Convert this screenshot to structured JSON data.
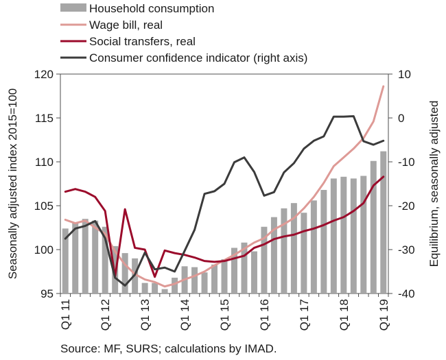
{
  "chart_data": {
    "type": "bar+line",
    "legend": {
      "placement": "top-left",
      "entries": [
        {
          "label": "Household consumption",
          "kind": "bar",
          "color": "#a6a6a6"
        },
        {
          "label": "Wage bill, real",
          "kind": "line",
          "color": "#de9a96"
        },
        {
          "label": "Social transfers, real",
          "kind": "line",
          "color": "#9b0b2b"
        },
        {
          "label": "Consumer confidence indicator (right axis)",
          "kind": "line",
          "color": "#3b3b3b"
        }
      ]
    },
    "ylabel_left": "Seasonally adjusted index 2015=100",
    "ylabel_right": "Equilibrium, seasonally adjusted",
    "y_left": {
      "min": 95,
      "max": 120,
      "ticks": [
        "95",
        "100",
        "105",
        "110",
        "115",
        "120"
      ]
    },
    "y_right": {
      "min": -40,
      "max": 10,
      "ticks": [
        "-40",
        "-30",
        "-20",
        "-10",
        "0",
        "10"
      ]
    },
    "x_ticks": [
      "Q1 11",
      "Q1 12",
      "Q1 13",
      "Q1 14",
      "Q1 15",
      "Q1 16",
      "Q1 17",
      "Q1 18",
      "Q1 19"
    ],
    "grid": false,
    "source": "Source: MF, SURS; calculations by IMAD.",
    "series": [
      {
        "name": "Household consumption",
        "axis": "left",
        "type": "bar",
        "color": "#a6a6a6",
        "values": [
          102.4,
          103.1,
          103.5,
          103.3,
          102.6,
          100.4,
          99.6,
          99.0,
          96.2,
          96.2,
          95.5,
          96.8,
          98.1,
          98.0,
          97.4,
          98.3,
          98.9,
          100.2,
          100.8,
          99.8,
          102.6,
          103.7,
          104.7,
          105.3,
          104.2,
          105.6,
          106.8,
          108.1,
          108.3,
          108.1,
          108.4,
          110.1,
          111.2
        ]
      },
      {
        "name": "Wage bill, real",
        "axis": "left",
        "type": "line",
        "color": "#de9a96",
        "values": [
          103.4,
          103.0,
          103.3,
          102.5,
          101.8,
          99.8,
          98.3,
          97.2,
          96.6,
          96.3,
          95.8,
          96.1,
          96.6,
          97.0,
          97.5,
          98.2,
          98.8,
          99.4,
          100.1,
          100.8,
          101.3,
          102.3,
          102.9,
          103.6,
          104.7,
          106.0,
          107.6,
          109.5,
          110.5,
          111.5,
          112.7,
          114.6,
          118.6
        ]
      },
      {
        "name": "Social transfers, real",
        "axis": "left",
        "type": "line",
        "color": "#9b0b2b",
        "values": [
          106.6,
          106.9,
          106.6,
          106.0,
          104.4,
          96.9,
          104.6,
          100.2,
          100.0,
          96.9,
          99.9,
          99.6,
          99.4,
          99.1,
          98.7,
          98.6,
          98.7,
          99.0,
          99.3,
          100.2,
          100.6,
          101.2,
          101.5,
          101.7,
          102.1,
          102.4,
          102.8,
          103.3,
          103.7,
          104.4,
          105.3,
          107.3,
          108.3
        ]
      },
      {
        "name": "Consumer confidence indicator (right axis)",
        "axis": "right",
        "type": "line",
        "color": "#3b3b3b",
        "values": [
          -27.5,
          -25.2,
          -24.6,
          -23.5,
          -27.4,
          -36.4,
          -38.2,
          -35.7,
          -30.7,
          -34.5,
          -34.1,
          -35.0,
          -30.3,
          -25.5,
          -17.3,
          -16.7,
          -15.0,
          -10.1,
          -9.0,
          -12.3,
          -17.7,
          -16.9,
          -12.4,
          -10.3,
          -7.0,
          -5.2,
          -4.2,
          0.3,
          0.3,
          0.4,
          -5.3,
          -6.1,
          -5.2
        ]
      }
    ]
  }
}
